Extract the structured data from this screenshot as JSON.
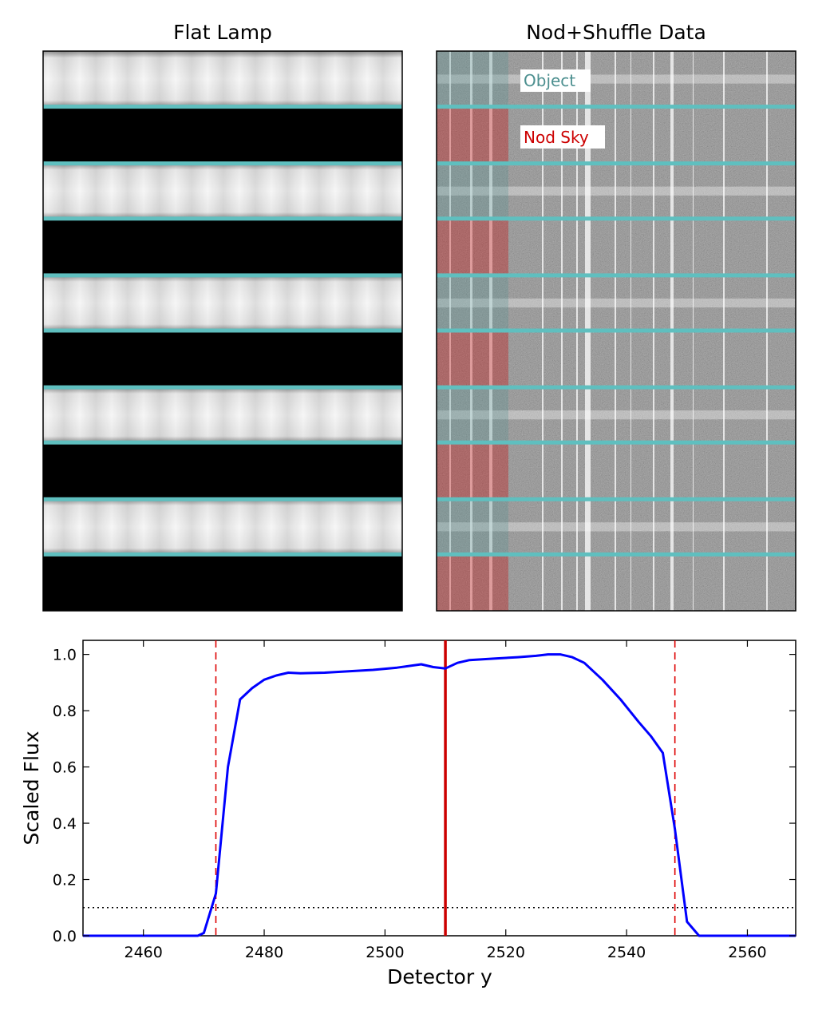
{
  "top_panels": {
    "flat_title": "Flat Lamp",
    "ns_title": "Nod+Shuffle Data",
    "object_label": "Object",
    "nod_sky_label": "Nod Sky",
    "object_color": "#4c8f8f",
    "nod_sky_color": "#cc0000",
    "slit_edge_color": "#5fbfbf",
    "rows": [
      "object",
      "sky",
      "object",
      "sky",
      "object",
      "sky",
      "object",
      "sky",
      "object",
      "sky"
    ]
  },
  "chart_data": {
    "type": "line",
    "xlabel": "Detector y",
    "ylabel": "Scaled Flux",
    "xlim": [
      2450,
      2568
    ],
    "ylim": [
      0.0,
      1.05
    ],
    "xticks": [
      2460,
      2480,
      2500,
      2520,
      2540,
      2560
    ],
    "yticks": [
      "0.0",
      "0.2",
      "0.4",
      "0.6",
      "0.8",
      "1.0"
    ],
    "grid": false,
    "series": [
      {
        "color": "#0000ff",
        "x": [
          2450,
          2469,
          2470,
          2472,
          2474,
          2476,
          2478,
          2480,
          2482,
          2484,
          2486,
          2490,
          2494,
          2498,
          2502,
          2506,
          2508,
          2510,
          2512,
          2514,
          2518,
          2522,
          2525,
          2527,
          2529,
          2531,
          2533,
          2536,
          2539,
          2542,
          2544,
          2546,
          2548,
          2550,
          2552,
          2555,
          2568
        ],
        "y": [
          0.0,
          0.0,
          0.01,
          0.15,
          0.6,
          0.84,
          0.88,
          0.91,
          0.925,
          0.935,
          0.933,
          0.935,
          0.94,
          0.945,
          0.953,
          0.965,
          0.955,
          0.95,
          0.97,
          0.98,
          0.985,
          0.99,
          0.995,
          1.0,
          1.0,
          0.99,
          0.97,
          0.91,
          0.84,
          0.76,
          0.71,
          0.65,
          0.38,
          0.05,
          0.0,
          0.0,
          0.0
        ]
      }
    ],
    "reference_lines": [
      {
        "orientation": "vertical",
        "x": 2472,
        "style": "dashed",
        "color": "#dd0000"
      },
      {
        "orientation": "vertical",
        "x": 2548,
        "style": "dashed",
        "color": "#dd0000"
      },
      {
        "orientation": "vertical",
        "x": 2510,
        "style": "solid",
        "color": "#cc0000"
      },
      {
        "orientation": "horizontal",
        "y": 0.1,
        "style": "dotted",
        "color": "#000000"
      }
    ]
  }
}
